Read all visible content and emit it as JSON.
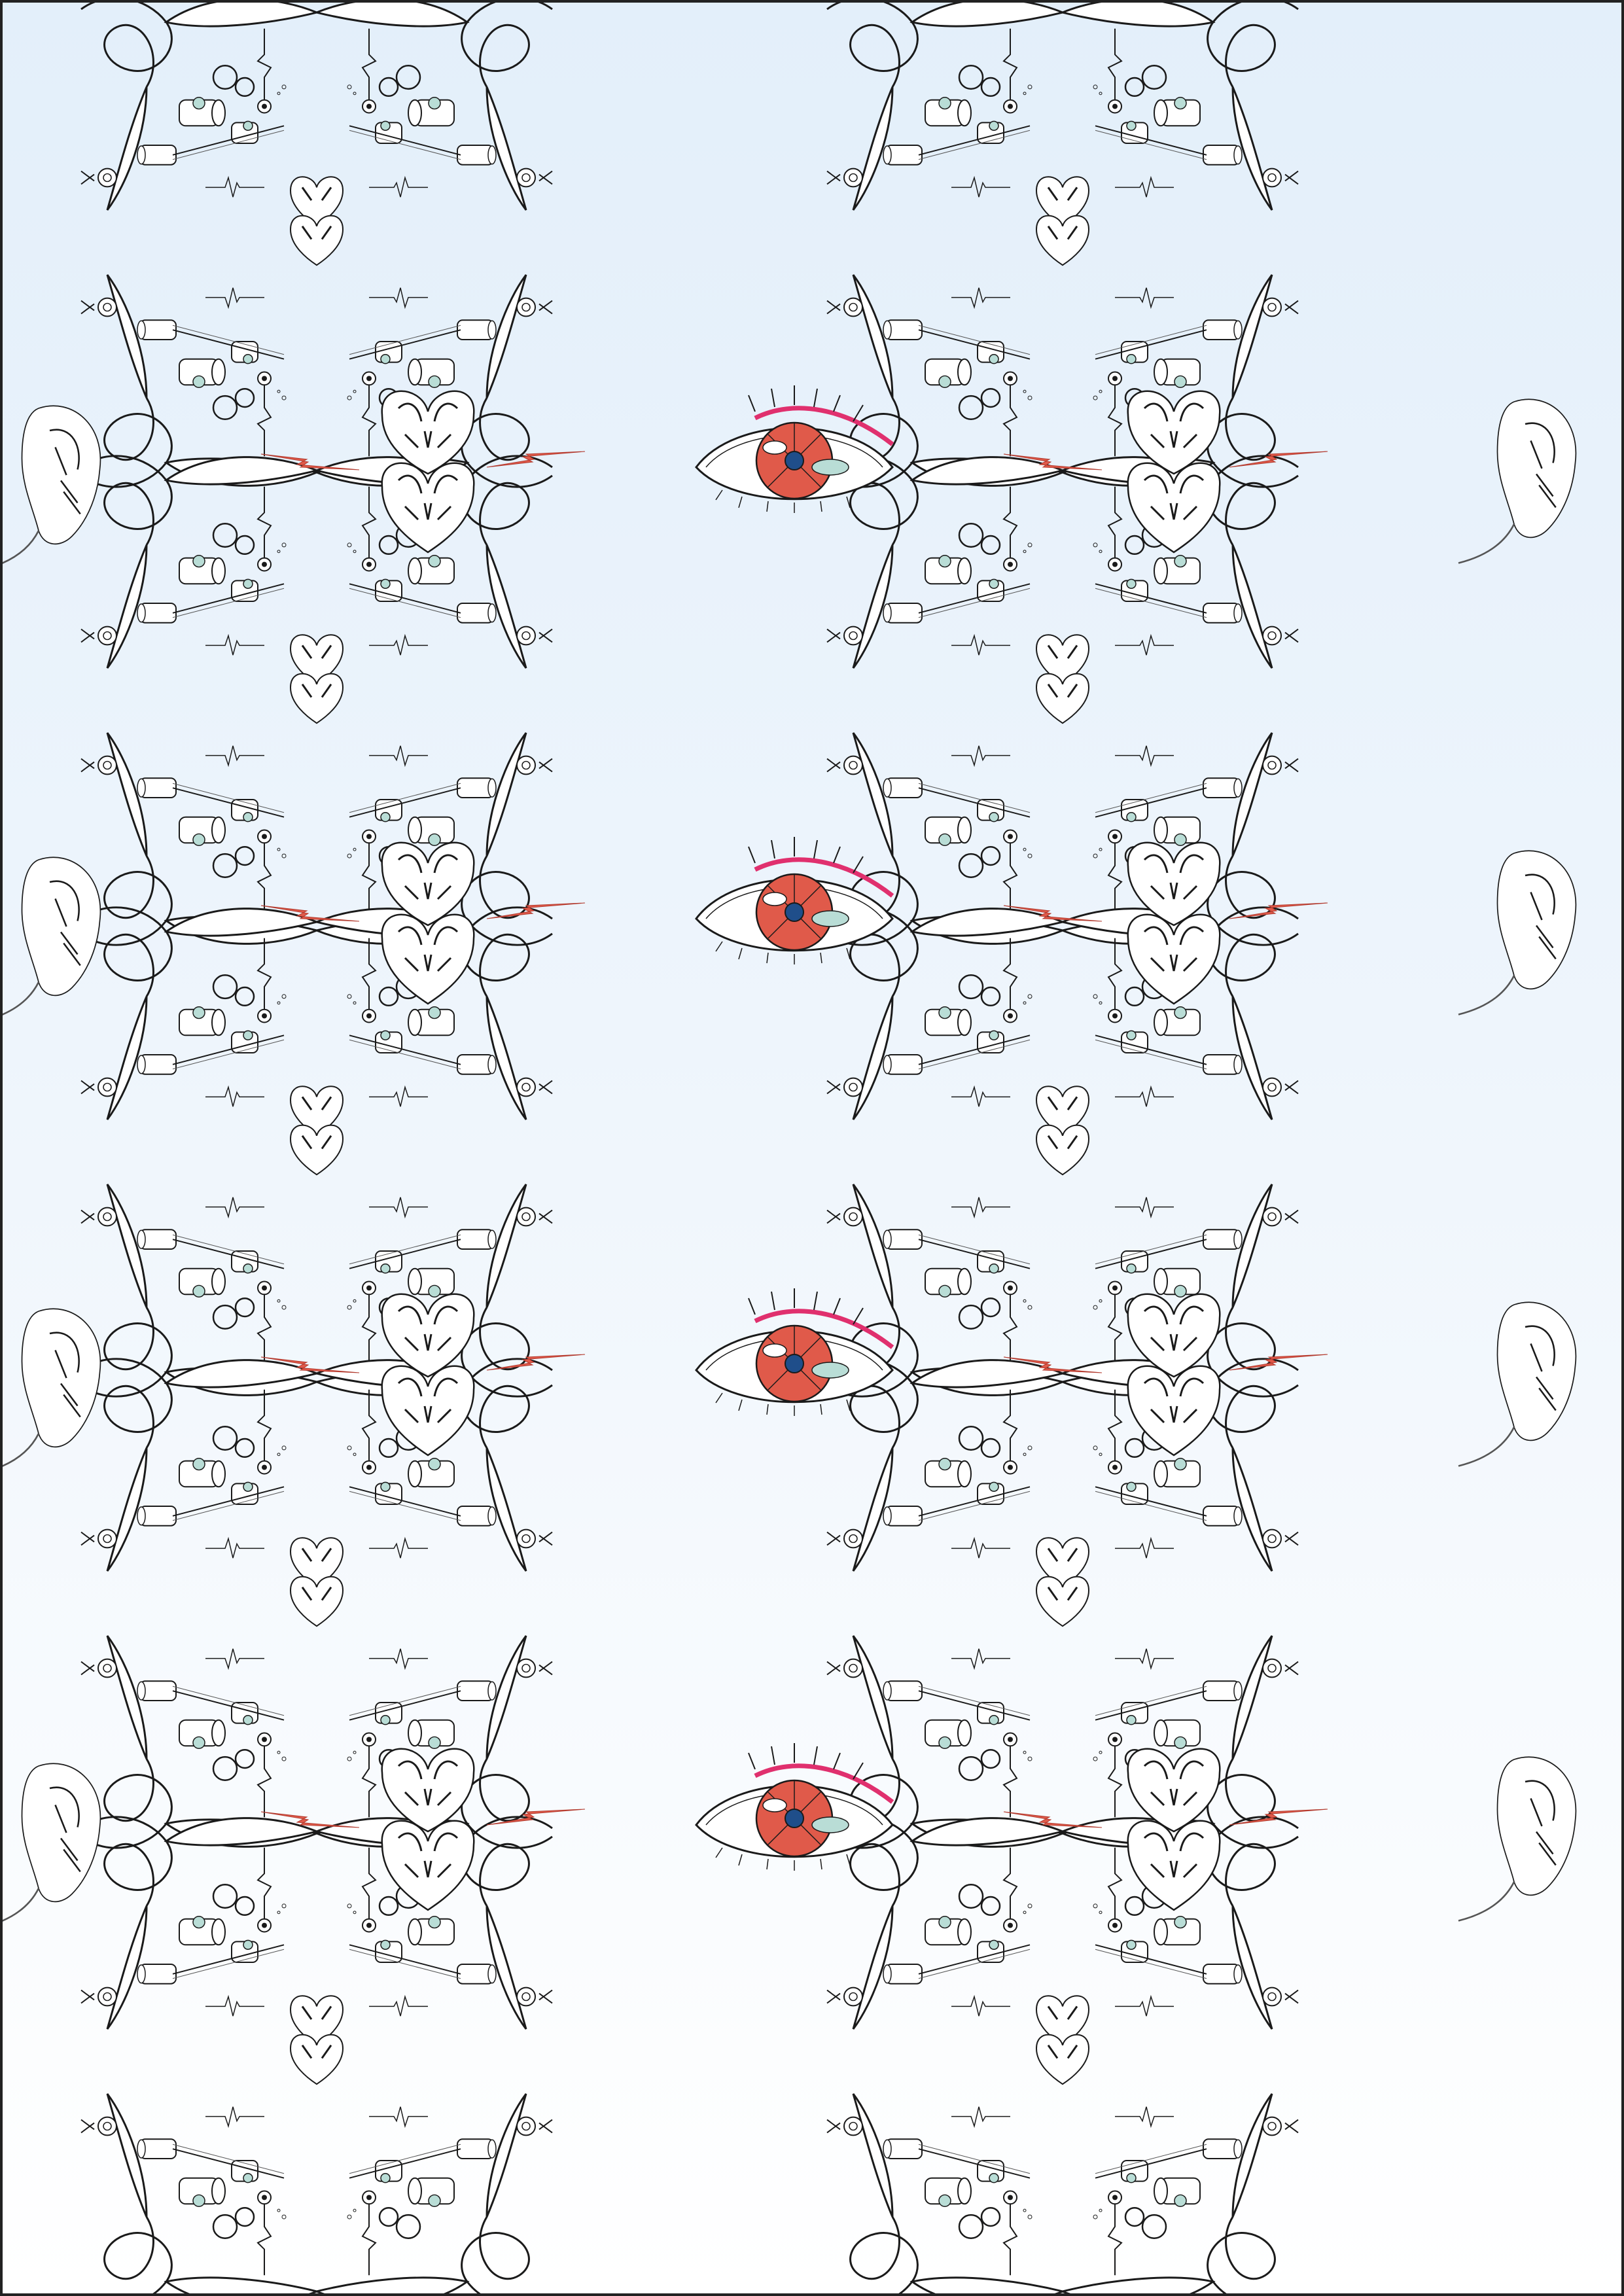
{
  "artwork": {
    "type": "repeating symmetric line-art pattern",
    "background_top": "#e3effa",
    "background_bottom": "#ffffff",
    "frame_color": "#222222",
    "line_color": "#1a1a1a",
    "accent_teal": "#b9ddd6",
    "accent_red": "#e05a4a",
    "accent_pink": "#e0306e",
    "pupil_color": "#1f4e8a",
    "motifs": [
      "lasso-loop-icon",
      "gear-cluster-icon",
      "heart-mask-icon",
      "lightning-bolt-icon",
      "eye-icon",
      "ear-icon"
    ],
    "rows_of_eyes": 4,
    "columns": 2
  }
}
